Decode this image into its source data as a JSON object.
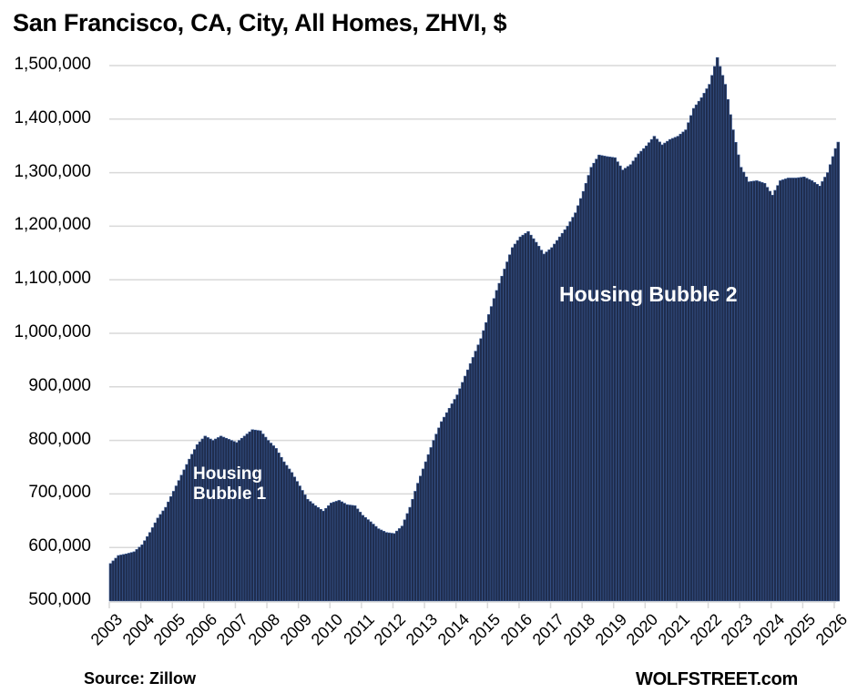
{
  "header": {
    "title": "San Francisco, CA, City, All Homes, ZHVI, $"
  },
  "footer": {
    "source": "Source: Zillow",
    "brand": "WOLFSTREET.com"
  },
  "annotations": [
    {
      "text_line1": "Housing",
      "text_line2": "Bubble 1"
    },
    {
      "text": "Housing Bubble 2"
    }
  ],
  "colors": {
    "bar_fill": "#1f2d4e",
    "bar_edge": "#3a5a95",
    "gridline": "#d9d9d9",
    "text": "#000000",
    "annotation_text": "#ffffff"
  },
  "chart_data": {
    "type": "bar",
    "title": "San Francisco, CA, City, All Homes, ZHVI, $",
    "xlabel": "",
    "ylabel": "",
    "ylim": [
      500000,
      1500000
    ],
    "yticks": [
      500000,
      600000,
      700000,
      800000,
      900000,
      1000000,
      1100000,
      1200000,
      1300000,
      1400000,
      1500000
    ],
    "ytick_labels": [
      "500,000",
      "600,000",
      "700,000",
      "800,000",
      "900,000",
      "1,000,000",
      "1,100,000",
      "1,200,000",
      "1,300,000",
      "1,400,000",
      "1,500,000"
    ],
    "xtick_labels": [
      "2003",
      "2004",
      "2005",
      "2006",
      "2007",
      "2008",
      "2009",
      "2010",
      "2011",
      "2012",
      "2013",
      "2014",
      "2015",
      "2016",
      "2017",
      "2018",
      "2019",
      "2020",
      "2021",
      "2022",
      "2023",
      "2024",
      "2025",
      "2026"
    ],
    "grid": true,
    "legend": "none",
    "frequency": "monthly (values below are approximate quarterly readings, interpolated monthly in rendering)",
    "series": [
      {
        "name": "ZHVI All Homes",
        "points": [
          [
            "2003-01",
            570000
          ],
          [
            "2003-04",
            585000
          ],
          [
            "2003-07",
            588000
          ],
          [
            "2003-10",
            592000
          ],
          [
            "2004-01",
            605000
          ],
          [
            "2004-04",
            628000
          ],
          [
            "2004-07",
            655000
          ],
          [
            "2004-10",
            675000
          ],
          [
            "2005-01",
            705000
          ],
          [
            "2005-04",
            735000
          ],
          [
            "2005-07",
            765000
          ],
          [
            "2005-10",
            792000
          ],
          [
            "2006-01",
            808000
          ],
          [
            "2006-04",
            800000
          ],
          [
            "2006-07",
            808000
          ],
          [
            "2006-10",
            802000
          ],
          [
            "2007-01",
            796000
          ],
          [
            "2007-04",
            808000
          ],
          [
            "2007-07",
            820000
          ],
          [
            "2007-10",
            818000
          ],
          [
            "2008-01",
            800000
          ],
          [
            "2008-04",
            785000
          ],
          [
            "2008-07",
            760000
          ],
          [
            "2008-10",
            740000
          ],
          [
            "2009-01",
            715000
          ],
          [
            "2009-04",
            690000
          ],
          [
            "2009-07",
            678000
          ],
          [
            "2009-10",
            668000
          ],
          [
            "2010-01",
            683000
          ],
          [
            "2010-04",
            688000
          ],
          [
            "2010-07",
            680000
          ],
          [
            "2010-10",
            678000
          ],
          [
            "2011-01",
            660000
          ],
          [
            "2011-04",
            648000
          ],
          [
            "2011-07",
            635000
          ],
          [
            "2011-10",
            628000
          ],
          [
            "2012-01",
            626000
          ],
          [
            "2012-04",
            640000
          ],
          [
            "2012-07",
            675000
          ],
          [
            "2012-10",
            720000
          ],
          [
            "2013-01",
            760000
          ],
          [
            "2013-04",
            800000
          ],
          [
            "2013-07",
            835000
          ],
          [
            "2013-10",
            860000
          ],
          [
            "2014-01",
            885000
          ],
          [
            "2014-04",
            920000
          ],
          [
            "2014-07",
            955000
          ],
          [
            "2014-10",
            990000
          ],
          [
            "2015-01",
            1035000
          ],
          [
            "2015-04",
            1080000
          ],
          [
            "2015-07",
            1120000
          ],
          [
            "2015-10",
            1160000
          ],
          [
            "2016-01",
            1180000
          ],
          [
            "2016-04",
            1190000
          ],
          [
            "2016-07",
            1170000
          ],
          [
            "2016-10",
            1148000
          ],
          [
            "2017-01",
            1160000
          ],
          [
            "2017-04",
            1180000
          ],
          [
            "2017-07",
            1200000
          ],
          [
            "2017-10",
            1225000
          ],
          [
            "2018-01",
            1265000
          ],
          [
            "2018-04",
            1310000
          ],
          [
            "2018-07",
            1333000
          ],
          [
            "2018-10",
            1330000
          ],
          [
            "2019-01",
            1328000
          ],
          [
            "2019-04",
            1305000
          ],
          [
            "2019-07",
            1315000
          ],
          [
            "2019-10",
            1335000
          ],
          [
            "2020-01",
            1350000
          ],
          [
            "2020-04",
            1368000
          ],
          [
            "2020-07",
            1352000
          ],
          [
            "2020-10",
            1362000
          ],
          [
            "2021-01",
            1368000
          ],
          [
            "2021-04",
            1380000
          ],
          [
            "2021-07",
            1420000
          ],
          [
            "2021-10",
            1440000
          ],
          [
            "2022-01",
            1465000
          ],
          [
            "2022-04",
            1515000
          ],
          [
            "2022-07",
            1465000
          ],
          [
            "2022-10",
            1380000
          ],
          [
            "2023-01",
            1310000
          ],
          [
            "2023-04",
            1283000
          ],
          [
            "2023-07",
            1285000
          ],
          [
            "2023-10",
            1280000
          ],
          [
            "2024-01",
            1258000
          ],
          [
            "2024-04",
            1285000
          ],
          [
            "2024-07",
            1290000
          ],
          [
            "2024-10",
            1290000
          ],
          [
            "2025-01",
            1292000
          ],
          [
            "2025-04",
            1285000
          ],
          [
            "2025-07",
            1275000
          ],
          [
            "2025-10",
            1300000
          ],
          [
            "2026-01",
            1345000
          ],
          [
            "2026-02",
            1357000
          ]
        ]
      }
    ]
  }
}
